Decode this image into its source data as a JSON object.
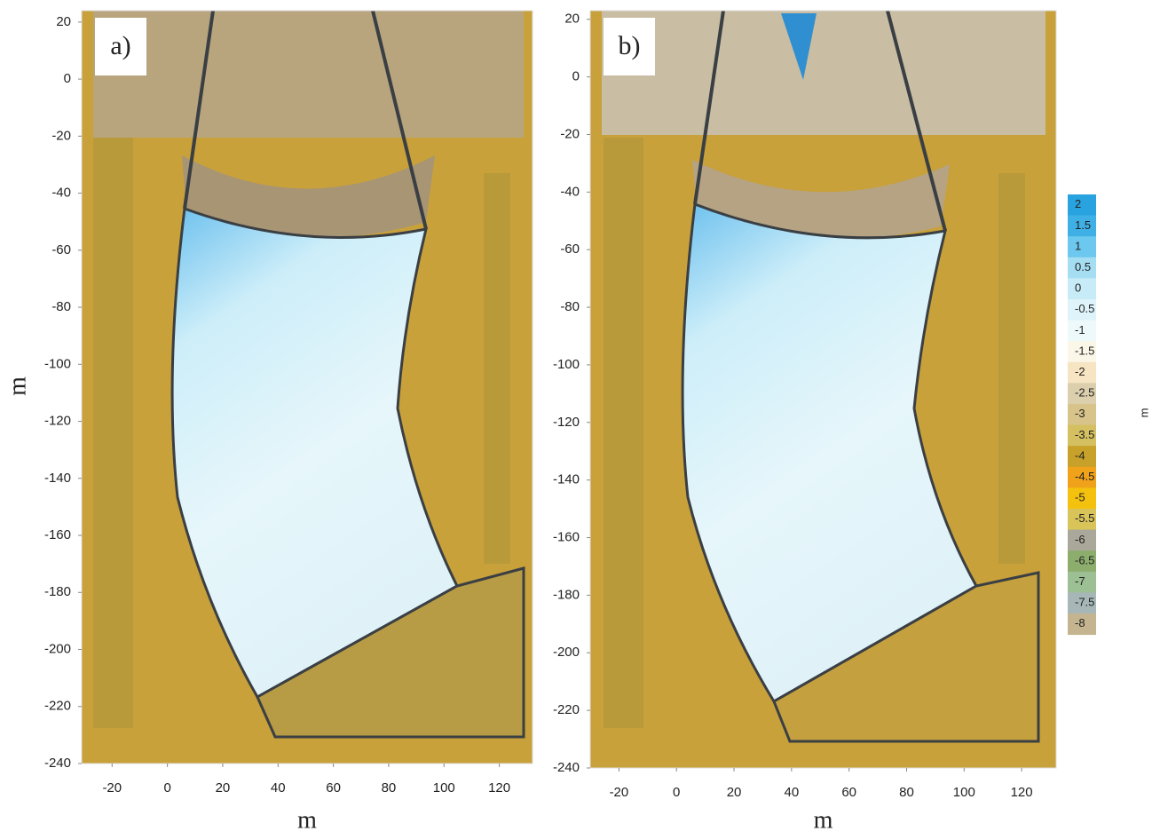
{
  "panels": [
    {
      "label": "a)",
      "xlim": [
        -31,
        132
      ],
      "ylim": [
        -240,
        24
      ],
      "xticks": [
        -20,
        0,
        20,
        40,
        60,
        80,
        100,
        120
      ],
      "yticks": [
        20,
        0,
        -20,
        -40,
        -60,
        -80,
        -100,
        -120,
        -140,
        -160,
        -180,
        -200,
        -220,
        -240
      ],
      "xlabel": "m"
    },
    {
      "label": "b)",
      "xlim": [
        -30,
        132
      ],
      "ylim": [
        -240,
        23
      ],
      "xticks": [
        -20,
        0,
        20,
        40,
        60,
        80,
        100,
        120
      ],
      "yticks": [
        20,
        0,
        -20,
        -40,
        -60,
        -80,
        -100,
        -120,
        -140,
        -160,
        -180,
        -200,
        -220,
        -240
      ],
      "xlabel": "m"
    }
  ],
  "ylabel": "m",
  "colorbar": {
    "label": "m",
    "ticks": [
      2,
      1.5,
      1,
      0.5,
      0,
      -0.5,
      -1,
      -1.5,
      -2,
      -2.5,
      -3,
      -3.5,
      -4,
      -4.5,
      -5,
      -5.5,
      -6,
      -6.5,
      -7,
      -7.5,
      -8
    ],
    "colors": [
      "#29a3e0",
      "#3fb0e6",
      "#6cc8ee",
      "#a5def3",
      "#c8ecf7",
      "#def4fa",
      "#eef9fb",
      "#fbf7e8",
      "#f7e4c2",
      "#dccfae",
      "#d8c48a",
      "#d4c060",
      "#c7a12a",
      "#f0a21a",
      "#f4c20e",
      "#d9c45a",
      "#a9a89a",
      "#8cad6c",
      "#9cc094",
      "#a7b7b8",
      "#c4b590"
    ]
  }
}
